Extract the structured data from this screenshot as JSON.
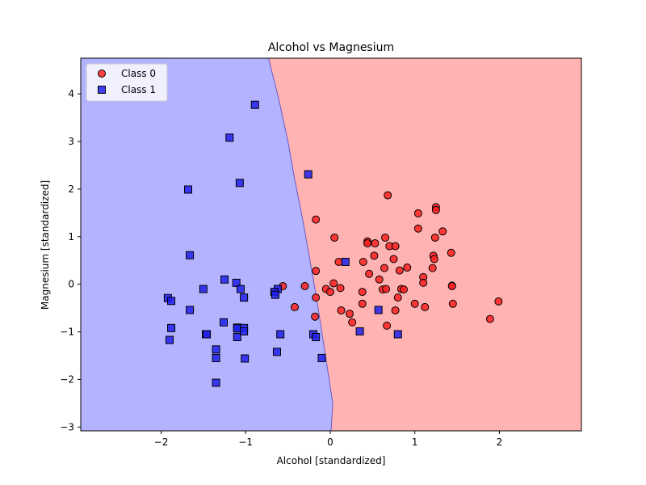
{
  "chart_data": {
    "type": "scatter",
    "title": "Alcohol vs Magnesium",
    "xlabel": "Alcohol [standardized]",
    "ylabel": "Magnesium [standardized]",
    "xlim": [
      -2.95,
      2.97
    ],
    "ylim": [
      -3.08,
      4.75
    ],
    "xticks": [
      -2,
      -1,
      0,
      1,
      2
    ],
    "yticks": [
      -3,
      -2,
      -1,
      0,
      1,
      2,
      3,
      4
    ],
    "grid": false,
    "legend_position": "top-left",
    "decision_regions": {
      "left_class": "Class 1",
      "right_class": "Class 0",
      "left_color": "#b3b3ff",
      "right_color": "#ffb3b3",
      "boundary_color": "#6a5acd",
      "boundary": [
        {
          "x": -0.73,
          "y": 4.75
        },
        {
          "x": -0.61,
          "y": 3.9
        },
        {
          "x": -0.5,
          "y": 3.0
        },
        {
          "x": -0.42,
          "y": 2.2
        },
        {
          "x": -0.33,
          "y": 1.4
        },
        {
          "x": -0.25,
          "y": 0.6
        },
        {
          "x": -0.17,
          "y": -0.2
        },
        {
          "x": -0.1,
          "y": -1.0
        },
        {
          "x": -0.03,
          "y": -1.8
        },
        {
          "x": 0.03,
          "y": -2.5
        },
        {
          "x": 0.01,
          "y": -3.08
        }
      ]
    },
    "series": [
      {
        "name": "Class 0",
        "marker": "circle",
        "color": "#ff2020",
        "points": [
          [
            -0.17,
            1.36
          ],
          [
            0.05,
            0.98
          ],
          [
            0.1,
            0.47
          ],
          [
            0.04,
            0.02
          ],
          [
            -0.05,
            -0.1
          ],
          [
            -0.17,
            0.28
          ],
          [
            -0.3,
            -0.04
          ],
          [
            -0.42,
            -0.48
          ],
          [
            -0.17,
            -0.28
          ],
          [
            -0.18,
            -0.68
          ],
          [
            0.0,
            -0.16
          ],
          [
            0.12,
            -0.08
          ],
          [
            0.13,
            -0.55
          ],
          [
            0.23,
            -0.62
          ],
          [
            0.26,
            -0.8
          ],
          [
            0.38,
            -0.41
          ],
          [
            0.38,
            -0.16
          ],
          [
            0.39,
            0.47
          ],
          [
            0.44,
            0.9
          ],
          [
            0.44,
            0.86
          ],
          [
            0.46,
            0.22
          ],
          [
            0.52,
            0.6
          ],
          [
            0.53,
            0.86
          ],
          [
            0.58,
            0.1
          ],
          [
            0.62,
            -0.11
          ],
          [
            0.64,
            0.34
          ],
          [
            0.65,
            0.98
          ],
          [
            0.67,
            -0.87
          ],
          [
            0.68,
            1.87
          ],
          [
            0.7,
            0.8
          ],
          [
            0.75,
            0.53
          ],
          [
            0.77,
            0.8
          ],
          [
            0.77,
            -0.55
          ],
          [
            0.8,
            -0.28
          ],
          [
            0.82,
            0.29
          ],
          [
            0.84,
            -0.1
          ],
          [
            0.87,
            -0.11
          ],
          [
            0.91,
            0.35
          ],
          [
            1.0,
            -0.41
          ],
          [
            1.04,
            1.49
          ],
          [
            1.04,
            1.17
          ],
          [
            1.1,
            0.15
          ],
          [
            1.1,
            0.03
          ],
          [
            1.12,
            -0.48
          ],
          [
            1.21,
            0.34
          ],
          [
            1.22,
            0.6
          ],
          [
            1.23,
            0.53
          ],
          [
            1.24,
            0.98
          ],
          [
            1.25,
            1.62
          ],
          [
            1.25,
            1.56
          ],
          [
            1.33,
            1.11
          ],
          [
            1.43,
            0.66
          ],
          [
            1.44,
            -0.03
          ],
          [
            1.44,
            -0.04
          ],
          [
            1.45,
            -0.41
          ],
          [
            1.89,
            -0.73
          ],
          [
            1.99,
            -0.36
          ],
          [
            -0.56,
            -0.04
          ],
          [
            0.66,
            -0.1
          ]
        ]
      },
      {
        "name": "Class 1",
        "marker": "square",
        "color": "#2020ee",
        "points": [
          [
            -0.89,
            3.77
          ],
          [
            -1.19,
            3.08
          ],
          [
            -1.07,
            2.13
          ],
          [
            -1.68,
            1.99
          ],
          [
            -0.26,
            2.31
          ],
          [
            -1.66,
            0.61
          ],
          [
            0.18,
            0.47
          ],
          [
            -1.25,
            0.1
          ],
          [
            -1.11,
            0.03
          ],
          [
            -1.06,
            -0.1
          ],
          [
            -1.5,
            -0.1
          ],
          [
            -0.62,
            -0.1
          ],
          [
            -0.66,
            -0.16
          ],
          [
            -0.65,
            -0.22
          ],
          [
            -1.92,
            -0.29
          ],
          [
            -1.88,
            -0.35
          ],
          [
            -1.02,
            -0.28
          ],
          [
            -1.66,
            -0.54
          ],
          [
            -1.88,
            -0.92
          ],
          [
            -1.1,
            -0.91
          ],
          [
            -1.1,
            -0.93
          ],
          [
            -1.02,
            -0.92
          ],
          [
            -1.02,
            -0.99
          ],
          [
            -1.47,
            -1.05
          ],
          [
            -1.46,
            -1.05
          ],
          [
            -0.59,
            -1.05
          ],
          [
            -0.2,
            -1.05
          ],
          [
            -0.17,
            -1.11
          ],
          [
            -1.1,
            -1.11
          ],
          [
            -1.9,
            -1.17
          ],
          [
            -1.35,
            -1.37
          ],
          [
            -0.63,
            -1.42
          ],
          [
            -1.35,
            -1.55
          ],
          [
            -1.01,
            -1.56
          ],
          [
            -0.1,
            -1.55
          ],
          [
            -1.35,
            -2.07
          ],
          [
            0.35,
            -0.99
          ],
          [
            0.57,
            -0.54
          ],
          [
            0.8,
            -1.05
          ],
          [
            -1.26,
            -0.8
          ]
        ]
      }
    ],
    "legend": [
      {
        "label": "Class 0",
        "marker": "circle",
        "color": "#ff2020"
      },
      {
        "label": "Class 1",
        "marker": "square",
        "color": "#2020ee"
      }
    ]
  }
}
